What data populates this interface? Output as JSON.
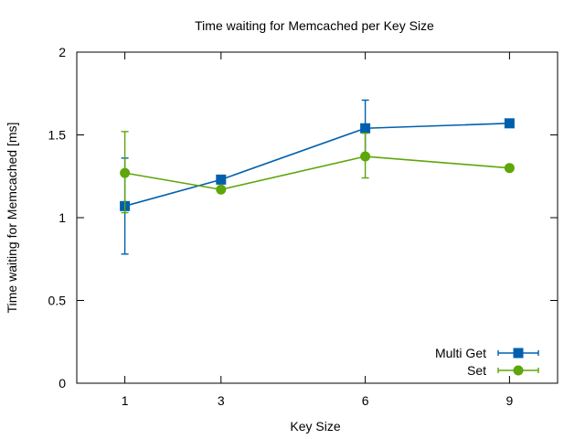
{
  "chart_data": {
    "type": "line",
    "title": "Time waiting for Memcached per Key Size",
    "xlabel": "Key Size",
    "ylabel": "Time waiting for Memcached [ms]",
    "x_ticks": [
      1,
      3,
      6,
      9
    ],
    "xlim": [
      0,
      10
    ],
    "ylim": [
      0,
      2
    ],
    "y_ticks": [
      0,
      0.5,
      1,
      1.5,
      2
    ],
    "grid": false,
    "legend_position": "bottom-right",
    "series": [
      {
        "name": "Multi Get",
        "color": "#0060ad",
        "marker": "square",
        "points": [
          {
            "x": 1,
            "y": 1.07,
            "ylow": 0.78,
            "yhigh": 1.36
          },
          {
            "x": 3,
            "y": 1.23,
            "ylow": 1.23,
            "yhigh": 1.23
          },
          {
            "x": 6,
            "y": 1.54,
            "ylow": 1.38,
            "yhigh": 1.71
          },
          {
            "x": 9,
            "y": 1.57,
            "ylow": 1.57,
            "yhigh": 1.57
          }
        ]
      },
      {
        "name": "Set",
        "color": "#5ea60a",
        "marker": "circle",
        "points": [
          {
            "x": 1,
            "y": 1.27,
            "ylow": 1.03,
            "yhigh": 1.52
          },
          {
            "x": 3,
            "y": 1.17,
            "ylow": 1.17,
            "yhigh": 1.17
          },
          {
            "x": 6,
            "y": 1.37,
            "ylow": 1.24,
            "yhigh": 1.51
          },
          {
            "x": 9,
            "y": 1.3,
            "ylow": 1.3,
            "yhigh": 1.3
          }
        ]
      }
    ]
  }
}
